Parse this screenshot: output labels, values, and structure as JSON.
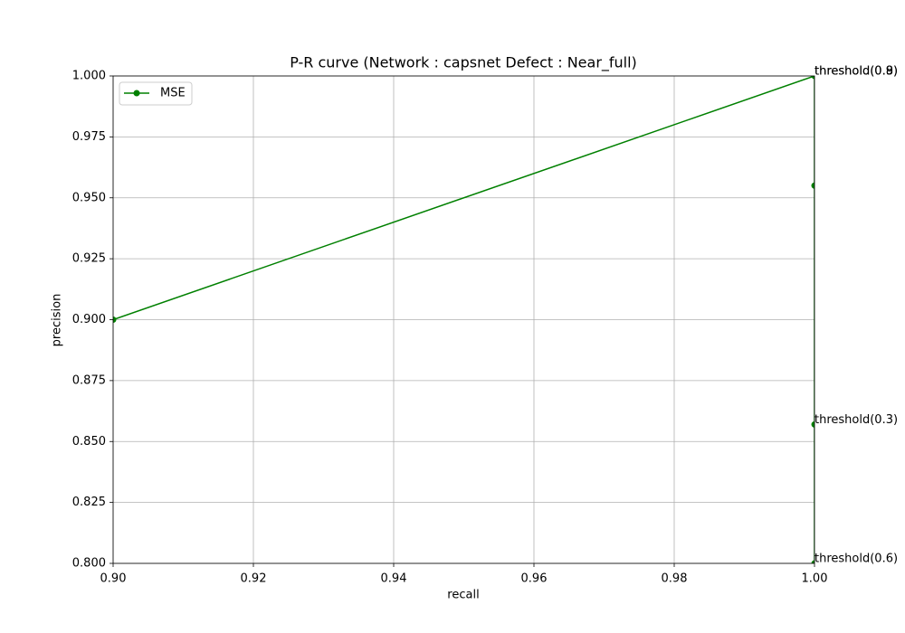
{
  "chart_data": {
    "type": "line",
    "title": "P-R curve (Network : capsnet Defect : Near_full)",
    "x_label": "recall",
    "y_label": "precision",
    "xlim": [
      0.9,
      1.0
    ],
    "ylim": [
      0.8,
      1.0
    ],
    "xticks": [
      {
        "value": 0.9,
        "label": "0.90"
      },
      0.92,
      0.94,
      0.96,
      0.98,
      {
        "value": 1.0,
        "label": "1.00"
      }
    ],
    "yticks": [
      {
        "value": 0.8,
        "label": "0.800"
      },
      0.825,
      {
        "value": 0.85,
        "label": "0.850"
      },
      0.875,
      {
        "value": 0.9,
        "label": "0.900"
      },
      0.925,
      {
        "value": 0.95,
        "label": "0.950"
      },
      0.975,
      {
        "value": 1.0,
        "label": "1.000"
      }
    ],
    "grid": true,
    "legend": "upper left",
    "series": [
      {
        "name": "MSE",
        "color": "#008000",
        "x": [
          0.9,
          1.0,
          1.0,
          1.0,
          1.0
        ],
        "values": [
          0.9,
          1.0,
          0.955,
          0.857,
          0.8
        ]
      }
    ],
    "annotations": [
      {
        "text": "threshold(0.8)",
        "x": 1.0,
        "y": 1.0
      },
      {
        "text": "threshold(0.9)",
        "x": 1.0,
        "y": 1.0
      },
      {
        "text": "threshold(0.3)",
        "x": 1.0,
        "y": 0.857
      },
      {
        "text": "threshold(0.6)",
        "x": 1.0,
        "y": 0.8
      }
    ]
  }
}
